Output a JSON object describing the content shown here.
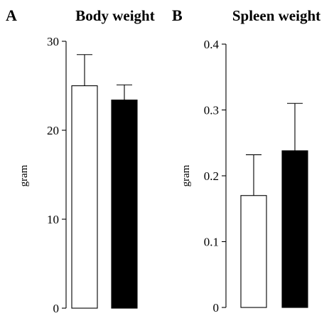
{
  "chart_data": [
    {
      "type": "bar",
      "panel": "A",
      "title": "Body weight",
      "ylabel": "gram",
      "xlabel": "",
      "ylim": [
        0,
        30
      ],
      "yticks": [
        0,
        10,
        20,
        30
      ],
      "ytick_labels": [
        "0",
        "10",
        "20",
        "30"
      ],
      "grid": false,
      "bars": [
        {
          "value": 25.0,
          "error": 3.5,
          "fill": "#ffffff"
        },
        {
          "value": 23.4,
          "error": 1.7,
          "fill": "#000000"
        }
      ]
    },
    {
      "type": "bar",
      "panel": "B",
      "title": "Spleen weight",
      "ylabel": "gram",
      "xlabel": "",
      "ylim": [
        0,
        0.4
      ],
      "yticks": [
        0,
        0.1,
        0.2,
        0.3,
        0.4
      ],
      "ytick_labels": [
        "0",
        "0.1",
        "0.2",
        "0.3",
        "0.4"
      ],
      "grid": false,
      "bars": [
        {
          "value": 0.17,
          "error": 0.062,
          "fill": "#ffffff"
        },
        {
          "value": 0.238,
          "error": 0.072,
          "fill": "#000000"
        }
      ]
    }
  ]
}
